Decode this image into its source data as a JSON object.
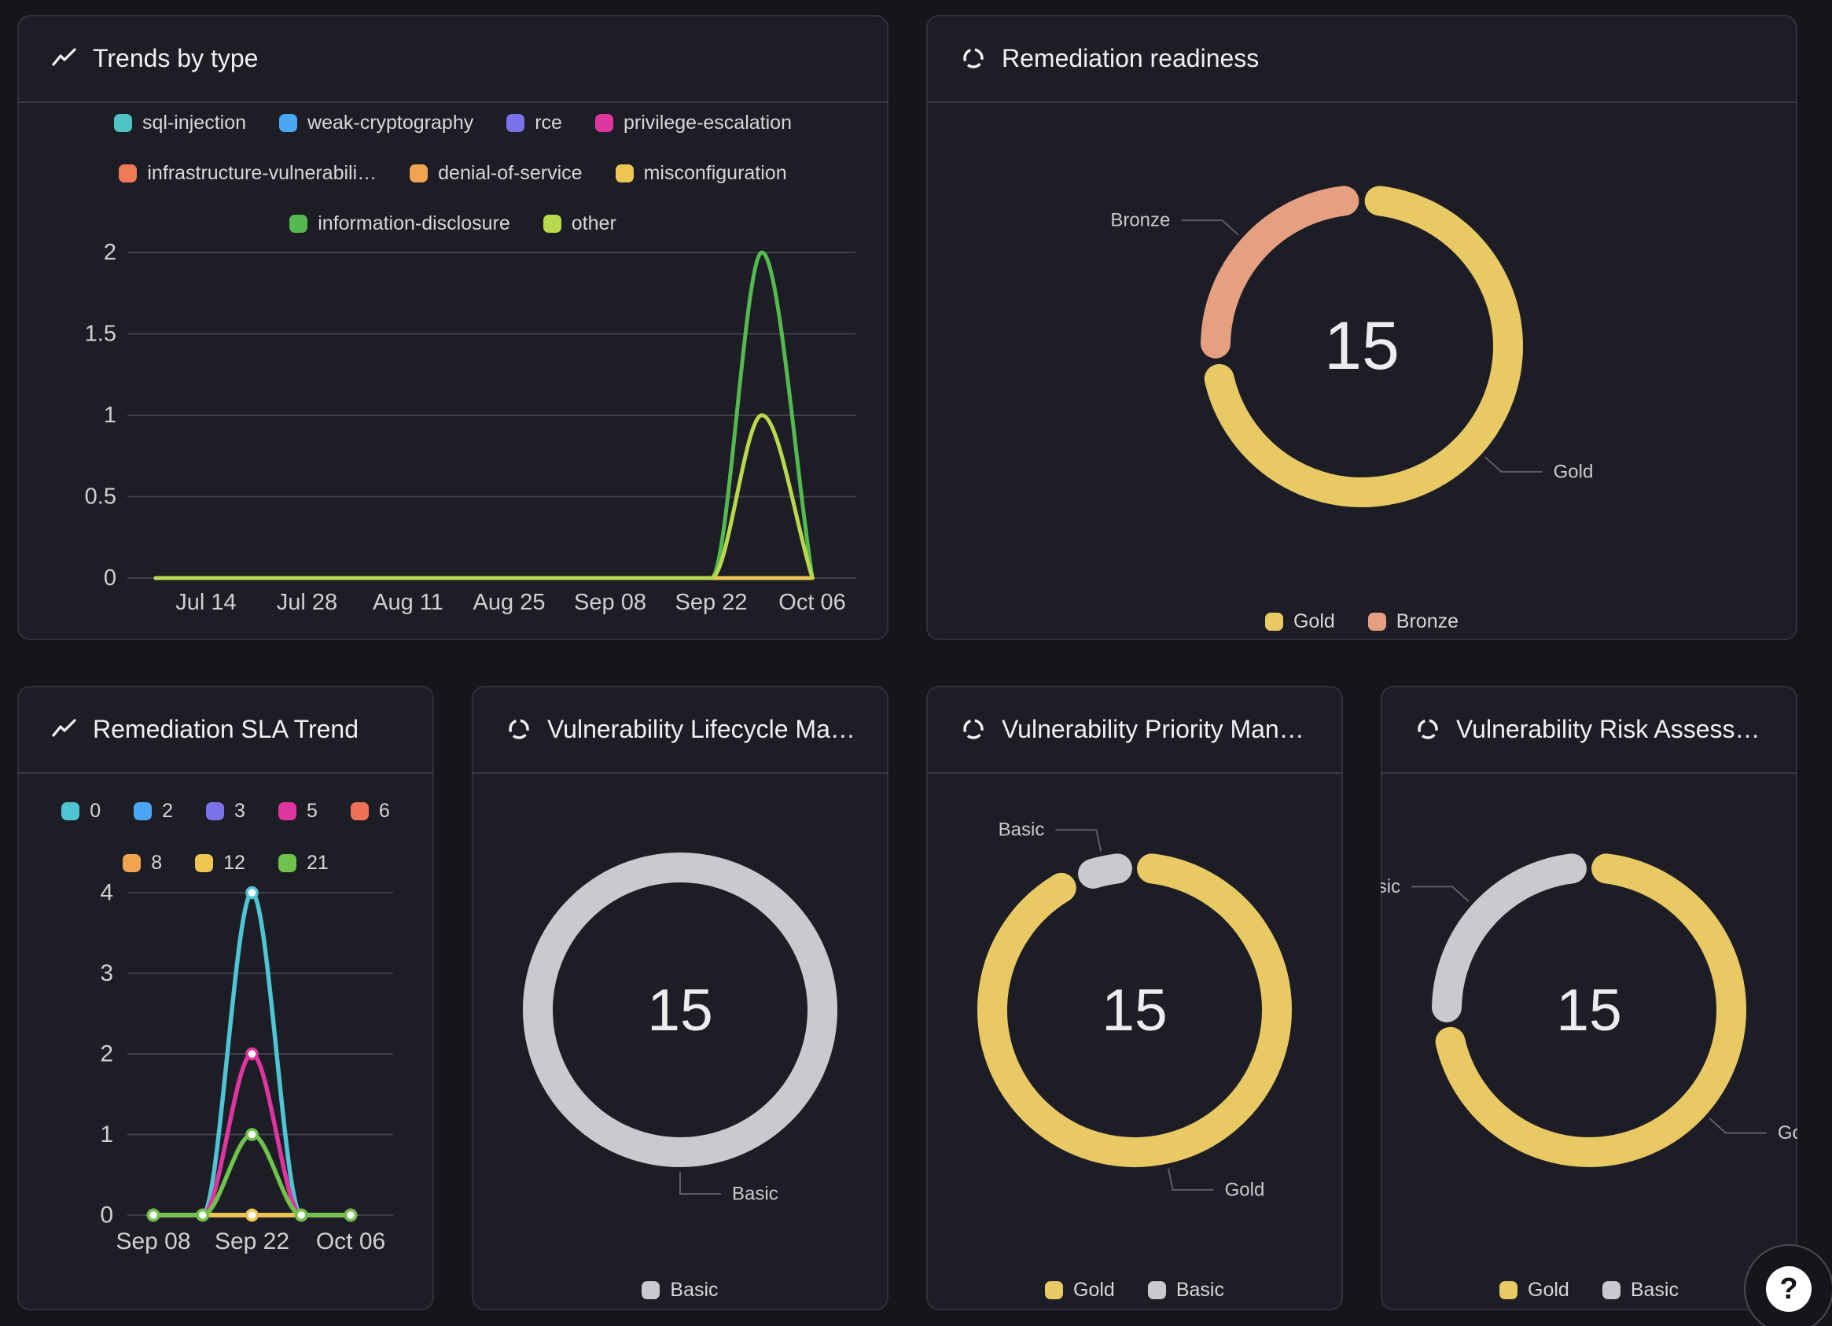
{
  "page": {
    "help_button": "?"
  },
  "panels": [
    {
      "key": "trends-by-type",
      "title": "Trends by type",
      "icon": "line-chart-icon"
    },
    {
      "key": "remediation-readiness",
      "title": "Remediation readiness",
      "icon": "donut-chart-icon"
    },
    {
      "key": "remediation-sla-trend",
      "title": "Remediation SLA Trend",
      "icon": "line-chart-icon"
    },
    {
      "key": "vulnerability-lifecycle",
      "title": "Vulnerability Lifecycle Ma…",
      "icon": "donut-chart-icon"
    },
    {
      "key": "vulnerability-priority",
      "title": "Vulnerability Priority Man…",
      "icon": "donut-chart-icon"
    },
    {
      "key": "vulnerability-risk-assessment",
      "title": "Vulnerability Risk Assess…",
      "icon": "donut-chart-icon"
    }
  ],
  "chart_data": [
    {
      "type": "line",
      "title": "Trends by type",
      "x": [
        "Jul 07",
        "Jul 14",
        "Jul 21",
        "Jul 28",
        "Aug 04",
        "Aug 11",
        "Aug 18",
        "Aug 25",
        "Sep 01",
        "Sep 08",
        "Sep 15",
        "Sep 22",
        "Sep 29",
        "Oct 06"
      ],
      "x_tick_labels": [
        "Jul 14",
        "Jul 28",
        "Aug 11",
        "Aug 25",
        "Sep 08",
        "Sep 22",
        "Oct 06"
      ],
      "ylim": [
        0,
        2
      ],
      "y_ticks": [
        0,
        0.5,
        1,
        1.5,
        2
      ],
      "grid": true,
      "legend_position": "top",
      "legend_rows": [
        4,
        3,
        2
      ],
      "series": [
        {
          "name": "sql-injection",
          "color": "#4cc5c5",
          "values": [
            0,
            0,
            0,
            0,
            0,
            0,
            0,
            0,
            0,
            0,
            0,
            0,
            0,
            0
          ]
        },
        {
          "name": "weak-cryptography",
          "color": "#4ba6f5",
          "values": [
            0,
            0,
            0,
            0,
            0,
            0,
            0,
            0,
            0,
            0,
            0,
            0,
            0,
            0
          ]
        },
        {
          "name": "rce",
          "color": "#7b72e9",
          "values": [
            0,
            0,
            0,
            0,
            0,
            0,
            0,
            0,
            0,
            0,
            0,
            0,
            0,
            0
          ]
        },
        {
          "name": "privilege-escalation",
          "color": "#de35a0",
          "values": [
            0,
            0,
            0,
            0,
            0,
            0,
            0,
            0,
            0,
            0,
            0,
            0,
            0,
            0
          ]
        },
        {
          "name": "infrastructure-vulnerabili…",
          "color": "#ee7a58",
          "values": [
            0,
            0,
            0,
            0,
            0,
            0,
            0,
            0,
            0,
            0,
            0,
            0,
            0,
            0
          ]
        },
        {
          "name": "denial-of-service",
          "color": "#f2a350",
          "values": [
            0,
            0,
            0,
            0,
            0,
            0,
            0,
            0,
            0,
            0,
            0,
            0,
            0,
            0
          ]
        },
        {
          "name": "misconfiguration",
          "color": "#ecc552",
          "values": [
            0,
            0,
            0,
            0,
            0,
            0,
            0,
            0,
            0,
            0,
            0,
            0,
            0,
            0
          ]
        },
        {
          "name": "information-disclosure",
          "color": "#54b94f",
          "values": [
            0,
            0,
            0,
            0,
            0,
            0,
            0,
            0,
            0,
            0,
            0,
            0,
            2,
            0
          ]
        },
        {
          "name": "other",
          "color": "#b9d94d",
          "values": [
            0,
            0,
            0,
            0,
            0,
            0,
            0,
            0,
            0,
            0,
            0,
            0,
            1,
            0
          ]
        }
      ]
    },
    {
      "type": "donut",
      "title": "Remediation readiness",
      "center_value": "15",
      "total": 15,
      "segments": [
        {
          "label": "Gold",
          "value": 11,
          "color": "#e8c964"
        },
        {
          "label": "Bronze",
          "value": 4,
          "color": "#e5a081"
        }
      ],
      "callouts": [
        {
          "segment": "Bronze",
          "text": "Bronze"
        },
        {
          "segment": "Gold",
          "text": "Gold"
        }
      ],
      "legend": [
        "Gold",
        "Bronze"
      ]
    },
    {
      "type": "line",
      "title": "Remediation SLA Trend",
      "x": [
        "Sep 08",
        "Sep 15",
        "Sep 22",
        "Sep 29",
        "Oct 06"
      ],
      "x_tick_labels": [
        "Sep 08",
        "Sep 22",
        "Oct 06"
      ],
      "ylim": [
        0,
        4
      ],
      "y_ticks": [
        0,
        1,
        2,
        3,
        4
      ],
      "grid": true,
      "show_points": true,
      "legend_position": "top",
      "legend_rows": [
        5,
        3
      ],
      "series": [
        {
          "name": "0",
          "color": "#4fc4d3",
          "values": [
            0,
            0,
            4,
            0,
            0
          ]
        },
        {
          "name": "2",
          "color": "#4ba6f5",
          "values": [
            0,
            0,
            0,
            0,
            0
          ]
        },
        {
          "name": "3",
          "color": "#7b72e9",
          "values": [
            0,
            0,
            0,
            0,
            0
          ]
        },
        {
          "name": "5",
          "color": "#de35a0",
          "values": [
            0,
            0,
            2,
            0,
            0
          ]
        },
        {
          "name": "6",
          "color": "#ee7258",
          "values": [
            0,
            0,
            0,
            0,
            0
          ]
        },
        {
          "name": "8",
          "color": "#f2a350",
          "values": [
            0,
            0,
            0,
            0,
            0
          ]
        },
        {
          "name": "12",
          "color": "#ecc552",
          "values": [
            0,
            0,
            0,
            0,
            0
          ]
        },
        {
          "name": "21",
          "color": "#6fc24c",
          "values": [
            0,
            0,
            1,
            0,
            0
          ]
        }
      ]
    },
    {
      "type": "donut",
      "title": "Vulnerability Lifecycle Ma…",
      "center_value": "15",
      "total": 15,
      "segments": [
        {
          "label": "Basic",
          "value": 15,
          "color": "#c9cacd"
        }
      ],
      "callouts": [
        {
          "segment": "Basic",
          "text": "Basic"
        }
      ],
      "legend": [
        "Basic"
      ]
    },
    {
      "type": "donut",
      "title": "Vulnerability Priority Man…",
      "center_value": "15",
      "total": 15,
      "segments": [
        {
          "label": "Gold",
          "value": 14,
          "color": "#e8c964"
        },
        {
          "label": "Basic",
          "value": 1,
          "color": "#c9cacd"
        }
      ],
      "callouts": [
        {
          "segment": "Basic",
          "text": "Basic"
        },
        {
          "segment": "Gold",
          "text": "Gold"
        }
      ],
      "legend": [
        "Gold",
        "Basic"
      ]
    },
    {
      "type": "donut",
      "title": "Vulnerability Risk Assess…",
      "center_value": "15",
      "total": 15,
      "segments": [
        {
          "label": "Gold",
          "value": 11,
          "color": "#e8c964"
        },
        {
          "label": "Basic",
          "value": 4,
          "color": "#c9cacd"
        }
      ],
      "callouts": [
        {
          "segment": "Basic",
          "text": "Basic",
          "clipped_display": "ic"
        },
        {
          "segment": "Gold",
          "text": "Gold",
          "clipped_display": "G"
        }
      ],
      "legend": [
        "Gold",
        "Basic"
      ]
    }
  ]
}
